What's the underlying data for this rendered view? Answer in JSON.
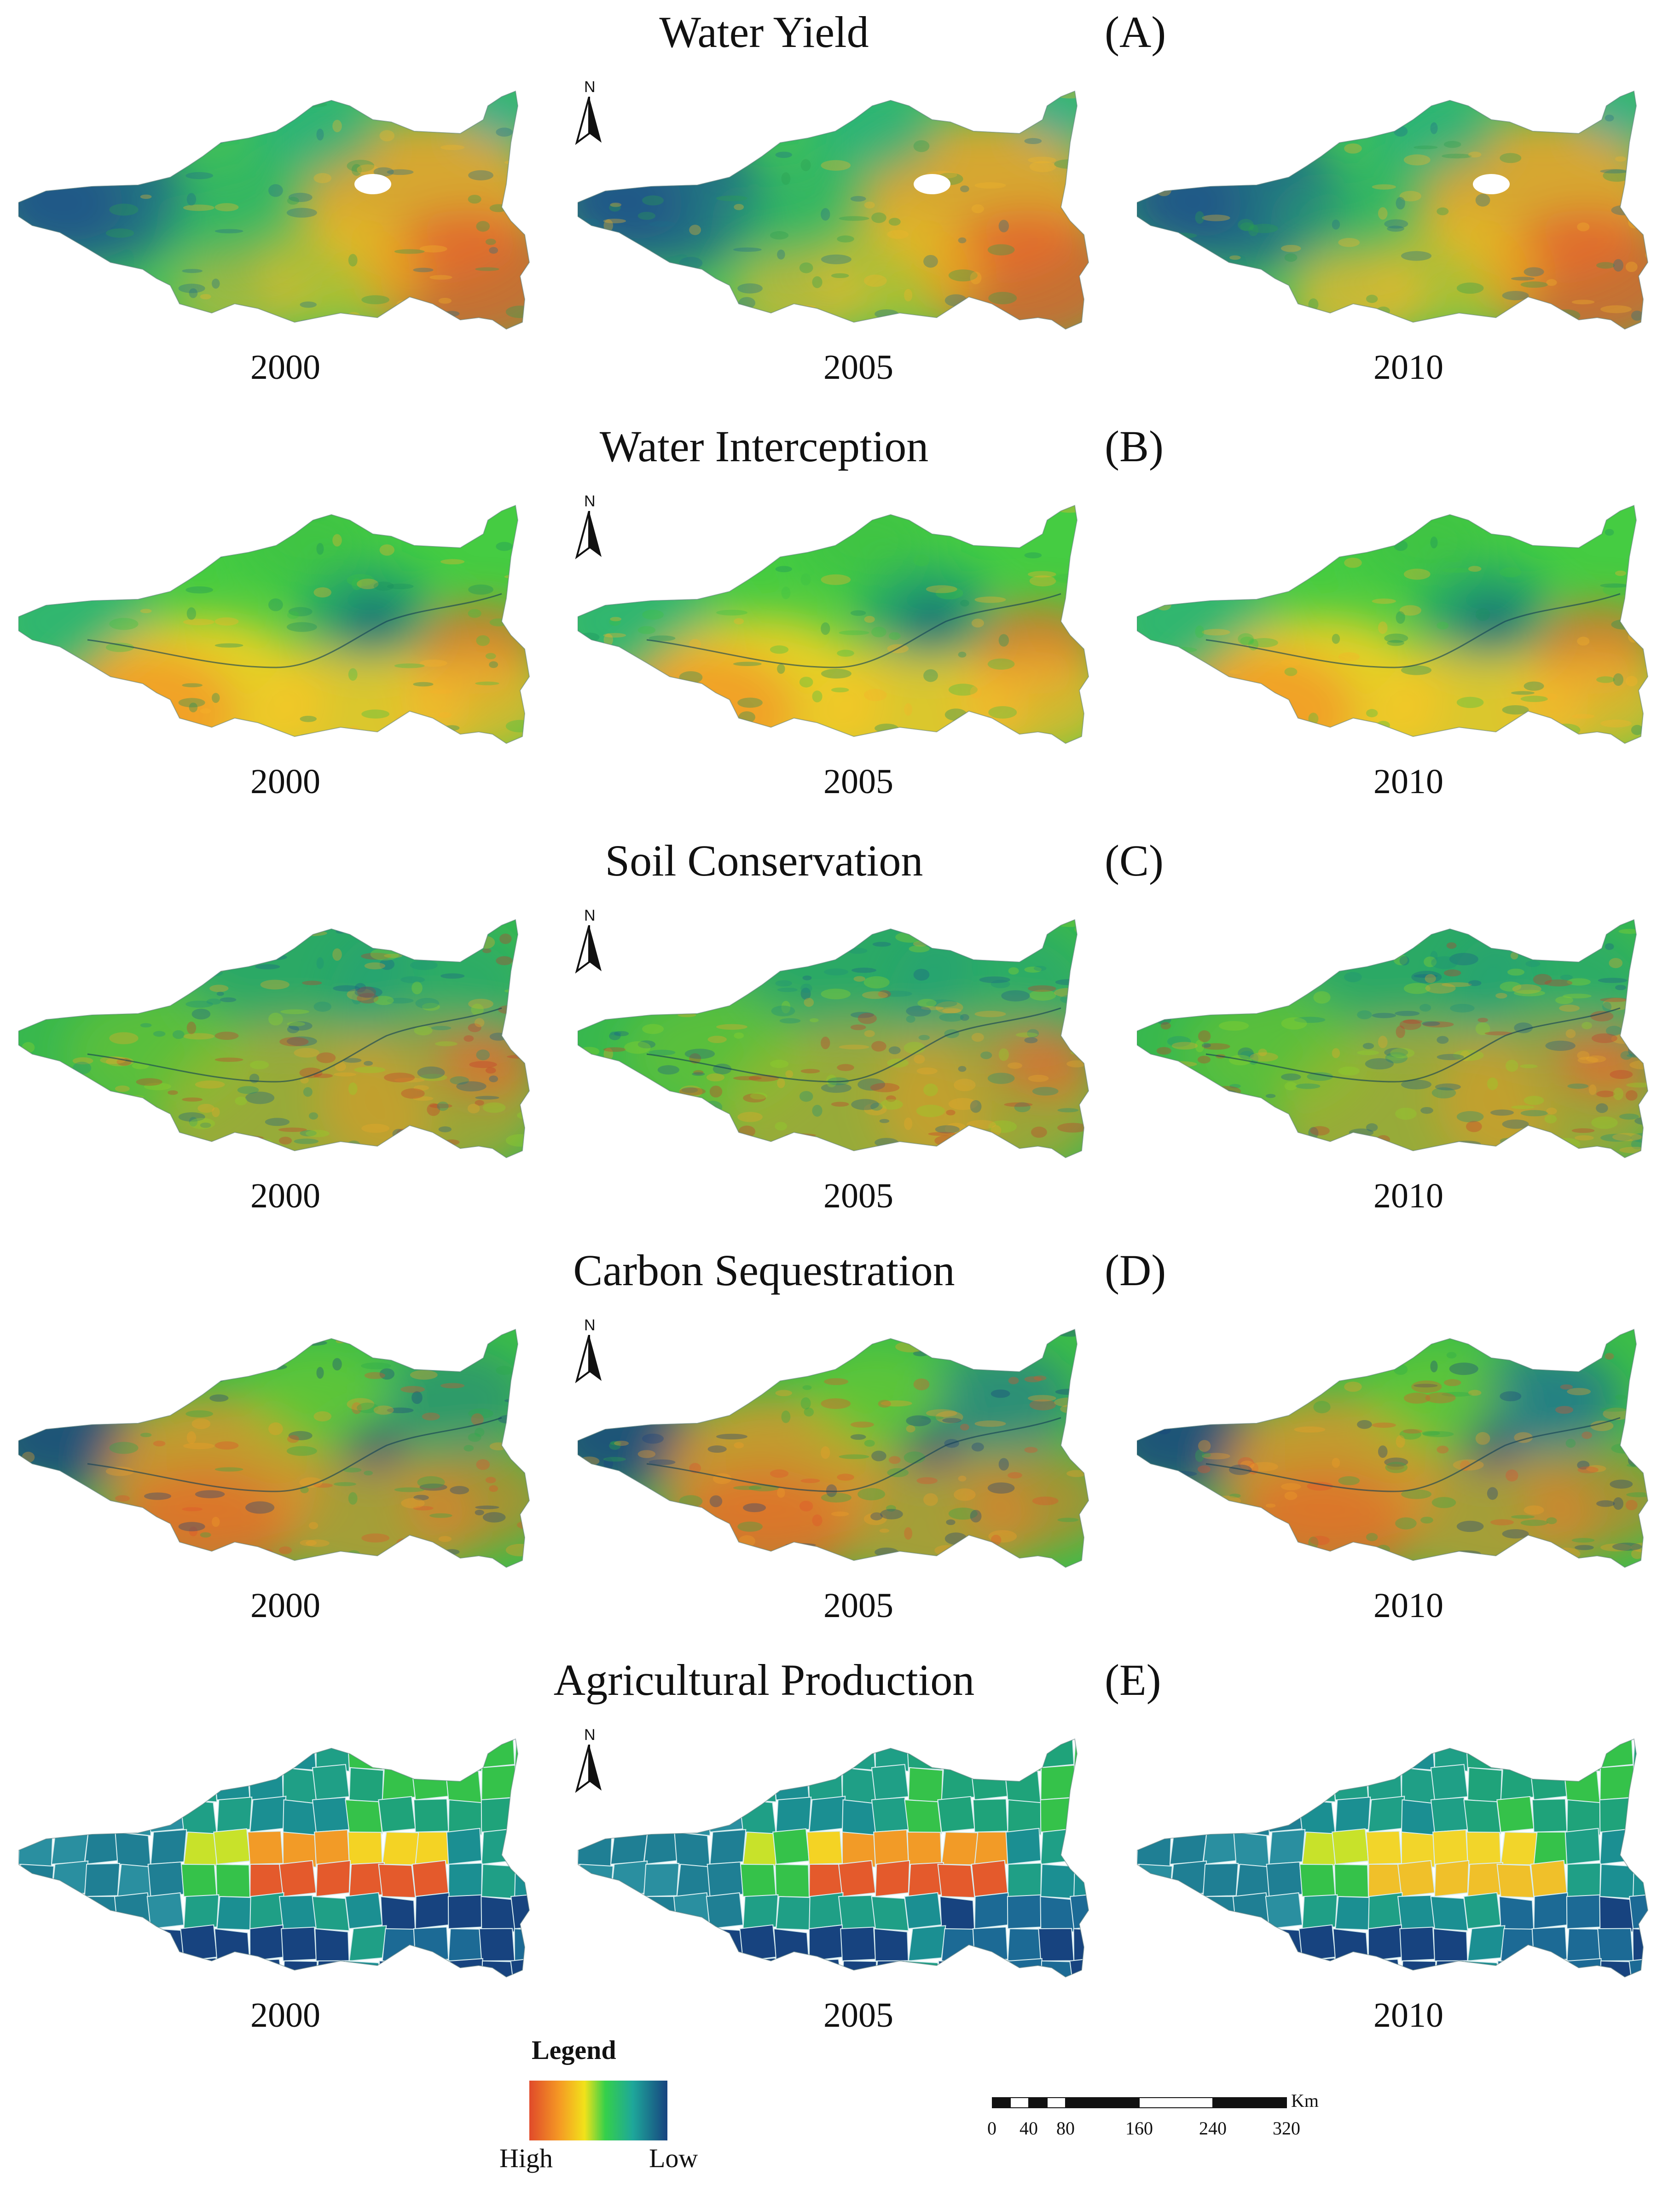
{
  "panels": [
    {
      "title": "Water Yield",
      "letter": "(A)",
      "years": [
        "2000",
        "2005",
        "2010"
      ],
      "style": "wy"
    },
    {
      "title": "Water Interception",
      "letter": "(B)",
      "years": [
        "2000",
        "2005",
        "2010"
      ],
      "style": "wi"
    },
    {
      "title": "Soil Conservation",
      "letter": "(C)",
      "years": [
        "2000",
        "2005",
        "2010"
      ],
      "style": "sc"
    },
    {
      "title": "Carbon Sequestration",
      "letter": "(D)",
      "years": [
        "2000",
        "2005",
        "2010"
      ],
      "style": "cs"
    },
    {
      "title": "Agricultural Production",
      "letter": "(E)",
      "years": [
        "2000",
        "2005",
        "2010"
      ],
      "style": "ap"
    }
  ],
  "north_arrow": {
    "label": "N",
    "icon": "north-arrow-icon"
  },
  "legend": {
    "title": "Legend",
    "high_label": "High",
    "low_label": "Low",
    "colors": [
      "#e04a2a",
      "#f59a24",
      "#f2e21a",
      "#35d04a",
      "#1ea79a",
      "#17437f"
    ]
  },
  "scale_bar": {
    "unit": "Km",
    "ticks": [
      "0",
      "40",
      "80",
      "160",
      "240",
      "320"
    ]
  }
}
